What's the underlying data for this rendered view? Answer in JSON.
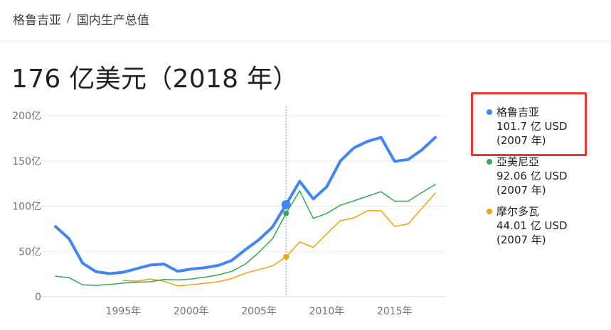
{
  "breadcrumb": {
    "country": "格鲁吉亚",
    "separator": "/",
    "topic": "国内生产总值"
  },
  "headline": "176 亿美元（2018 年）",
  "colors": {
    "series_1": "#4285f4",
    "series_2": "#34a853",
    "series_3": "#f2a20c",
    "highlight_box": "#e53935"
  },
  "chart_data": {
    "type": "line",
    "title": "",
    "xlabel": "",
    "ylabel": "",
    "xlim": [
      1990,
      2018
    ],
    "ylim": [
      0,
      200
    ],
    "grid": true,
    "legend_position": "right",
    "x_tick_values": [
      1995,
      2000,
      2005,
      2010,
      2015
    ],
    "x_tick_labels": [
      "1995年",
      "2000年",
      "2005年",
      "2010年",
      "2015年"
    ],
    "y_tick_values": [
      0,
      50,
      100,
      150,
      200
    ],
    "y_tick_labels": [
      "0",
      "50亿",
      "100亿",
      "150亿",
      "200亿"
    ],
    "hover_year": 2007,
    "series": [
      {
        "name": "格鲁吉亚",
        "x": [
          1990,
          1991,
          1992,
          1993,
          1994,
          1995,
          1996,
          1997,
          1998,
          1999,
          2000,
          2001,
          2002,
          2003,
          2004,
          2005,
          2006,
          2007,
          2008,
          2009,
          2010,
          2011,
          2012,
          2013,
          2014,
          2015,
          2016,
          2017,
          2018
        ],
        "values": [
          77.5,
          64,
          37,
          27.5,
          25.5,
          27,
          31,
          35,
          36,
          28,
          30.5,
          32,
          34.5,
          40,
          52,
          63,
          77,
          101.7,
          127.5,
          108,
          121.5,
          150,
          164.5,
          171.5,
          176,
          149.5,
          151.5,
          162,
          176
        ]
      },
      {
        "name": "亞美尼亞",
        "x": [
          1990,
          1991,
          1992,
          1993,
          1994,
          1995,
          1996,
          1997,
          1998,
          1999,
          2000,
          2001,
          2002,
          2003,
          2004,
          2005,
          2006,
          2007,
          2008,
          2009,
          2010,
          2011,
          2012,
          2013,
          2014,
          2015,
          2016,
          2017,
          2018
        ],
        "values": [
          22.5,
          21,
          13,
          12.5,
          13.5,
          15,
          16,
          16.5,
          19,
          18.5,
          19.5,
          21.5,
          24,
          28,
          36,
          49,
          64,
          92.06,
          117,
          86.5,
          92,
          101,
          106,
          111,
          116,
          105.5,
          105.5,
          115,
          124
        ]
      },
      {
        "name": "摩尔多瓦",
        "x": [
          1995,
          1996,
          1997,
          1998,
          1999,
          2000,
          2001,
          2002,
          2003,
          2004,
          2005,
          2006,
          2007,
          2008,
          2009,
          2010,
          2011,
          2012,
          2013,
          2014,
          2015,
          2016,
          2017,
          2018
        ],
        "values": [
          18,
          17,
          19.5,
          17,
          12,
          13,
          14.8,
          16.5,
          20,
          26,
          30,
          34,
          44.01,
          60.5,
          54.5,
          69.5,
          84,
          87,
          95,
          95,
          77.5,
          80.5,
          97.5,
          114.5
        ]
      }
    ]
  },
  "legend": [
    {
      "name": "格鲁吉亚",
      "value": "101.7 亿 USD",
      "year": "(2007 年)"
    },
    {
      "name": "亞美尼亞",
      "value": "92.06 亿 USD",
      "year": "(2007 年)"
    },
    {
      "name": "摩尔多瓦",
      "value": "44.01 亿 USD",
      "year": "(2007 年)"
    }
  ]
}
